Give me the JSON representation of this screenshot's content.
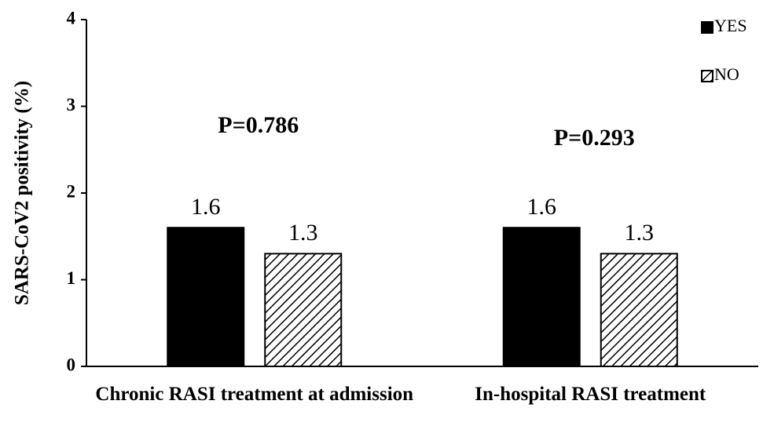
{
  "chart_data": {
    "type": "bar",
    "ylabel": "SARS-CoV2  positivity (%)",
    "categories": [
      "Chronic RASI treatment at admission",
      "In-hospital RASI treatment"
    ],
    "series": [
      {
        "name": "YES",
        "color": "#000000",
        "values": [
          1.6,
          1.6
        ]
      },
      {
        "name": "NO",
        "color": "#000000",
        "pattern": "hatch",
        "values": [
          1.3,
          1.3
        ]
      }
    ],
    "annotations": [
      "P=0.786",
      "P=0.293"
    ],
    "ylim": [
      0,
      4
    ],
    "yticks": [
      0,
      1,
      2,
      3,
      4
    ],
    "legend": "upper right",
    "grid": false
  }
}
